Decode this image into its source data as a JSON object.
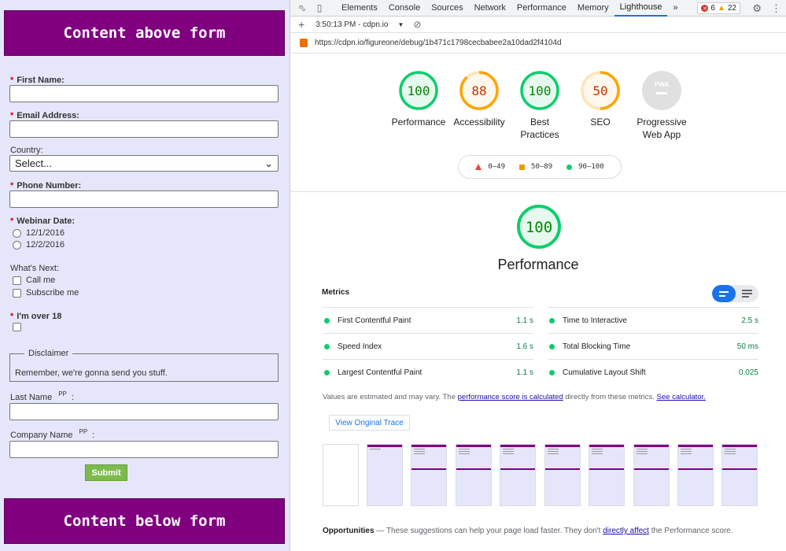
{
  "form": {
    "top_banner": "Content above form",
    "bottom_banner": "Content below form",
    "req_star": "*",
    "first_name_label": "First Name:",
    "email_label": "Email Address:",
    "country_label": "Country:",
    "country_value": "Select...",
    "phone_label": "Phone Number:",
    "webinar_label": "Webinar Date:",
    "webinar_options": [
      "12/1/2016",
      "12/2/2016"
    ],
    "whats_next_label": "What's Next:",
    "whats_next_options": [
      "Call me",
      "Subscribe me"
    ],
    "over18_label": "I'm over 18",
    "disclaimer_legend": "Disclaimer",
    "disclaimer_text": "Remember, we're gonna send you stuff.",
    "last_name_label": "Last Name",
    "company_label": "Company Name",
    "pp_marker": "PP",
    "colon": ":",
    "submit_label": "Submit"
  },
  "devtools": {
    "tabs": [
      "Elements",
      "Console",
      "Sources",
      "Network",
      "Performance",
      "Memory",
      "Lighthouse"
    ],
    "active_tab": "Lighthouse",
    "more_tabs": "»",
    "error_count": "6",
    "warning_count": "22",
    "report_selector": "3:50:13 PM - cdpn.io",
    "url": "https://cdpn.io/figureone/debug/1b471c1798cecbabee2a10dad2f4104d"
  },
  "scores": [
    {
      "name": "Performance",
      "value": 100,
      "display": "100",
      "color": "#0cce6b"
    },
    {
      "name": "Accessibility",
      "value": 88,
      "display": "88",
      "color": "#ffa400"
    },
    {
      "name": "Best Practices",
      "value": 100,
      "display": "100",
      "color": "#0cce6b"
    },
    {
      "name": "SEO",
      "value": 50,
      "display": "50",
      "color": "#ffa400"
    },
    {
      "name": "Progressive Web App",
      "display": "PWA"
    }
  ],
  "legend": [
    "0–49",
    "50–89",
    "90–100"
  ],
  "performance": {
    "score": "100",
    "title": "Performance",
    "metrics_heading": "Metrics",
    "metrics_left": [
      {
        "name": "First Contentful Paint",
        "value": "1.1 s"
      },
      {
        "name": "Speed Index",
        "value": "1.6 s"
      },
      {
        "name": "Largest Contentful Paint",
        "value": "1.1 s"
      }
    ],
    "metrics_right": [
      {
        "name": "Time to Interactive",
        "value": "2.5 s"
      },
      {
        "name": "Total Blocking Time",
        "value": "50 ms"
      },
      {
        "name": "Cumulative Layout Shift",
        "value": "0.025"
      }
    ],
    "estimate_pre": "Values are estimated and may vary. The ",
    "estimate_link": "performance score is calculated",
    "estimate_mid": " directly from these metrics. ",
    "estimate_link2": "See calculator.",
    "trace_button": "View Original Trace",
    "opps_title": "Opportunities",
    "opps_dash": " — ",
    "opps_text": "These suggestions can help your page load faster. They don't ",
    "opps_link": "directly affect",
    "opps_tail": " the Performance score."
  },
  "colors": {
    "banner": "#800080",
    "page_bg": "#e6e6fa",
    "pass": "#0cce6b",
    "average": "#ffa400",
    "fail": "#e8453c",
    "accent": "#1a73e8",
    "submit": "#7cba4e"
  }
}
